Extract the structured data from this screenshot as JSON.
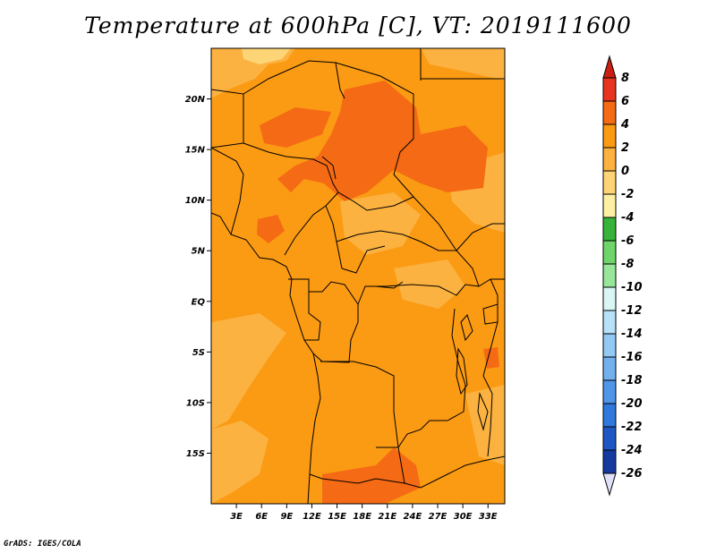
{
  "title": "Temperature at 600hPa [C], VT: 2019111600",
  "footer": "GrADS: IGES/COLA",
  "map": {
    "lon_range": [
      0,
      35
    ],
    "lat_range": [
      -20,
      25
    ],
    "y_ticks": [
      "20N",
      "15N",
      "10N",
      "5N",
      "EQ",
      "5S",
      "10S",
      "15S"
    ],
    "y_tick_values": [
      20,
      15,
      10,
      5,
      0,
      -5,
      -10,
      -15
    ],
    "x_ticks": [
      "3E",
      "6E",
      "9E",
      "12E",
      "15E",
      "18E",
      "21E",
      "24E",
      "27E",
      "30E",
      "33E"
    ],
    "x_tick_values": [
      3,
      6,
      9,
      12,
      15,
      18,
      21,
      24,
      27,
      30,
      33
    ]
  },
  "colorbar": {
    "labels": [
      "8",
      "6",
      "4",
      "2",
      "0",
      "-2",
      "-4",
      "-6",
      "-8",
      "-10",
      "-12",
      "-14",
      "-16",
      "-18",
      "-20",
      "-22",
      "-24",
      "-26"
    ],
    "colors": [
      "#e8341f",
      "#f56a14",
      "#fb9a13",
      "#fcb240",
      "#fdd576",
      "#fdf0a3",
      "#37b33a",
      "#6fd46a",
      "#97e69a",
      "#d9f5f4",
      "#b6e1f7",
      "#94c9f3",
      "#72b1ee",
      "#4f95e8",
      "#2f78de",
      "#1e57c4",
      "#143aa0",
      "#0c1b75"
    ],
    "top_arrow_color": "#cc1f14",
    "bottom_arrow_color": "#dfe2f6"
  },
  "field_colors": {
    "band_2_4": "#fb9a13",
    "band_0_2": "#fcb240",
    "band_4_6": "#f56a14",
    "band_light": "#fdd576"
  }
}
